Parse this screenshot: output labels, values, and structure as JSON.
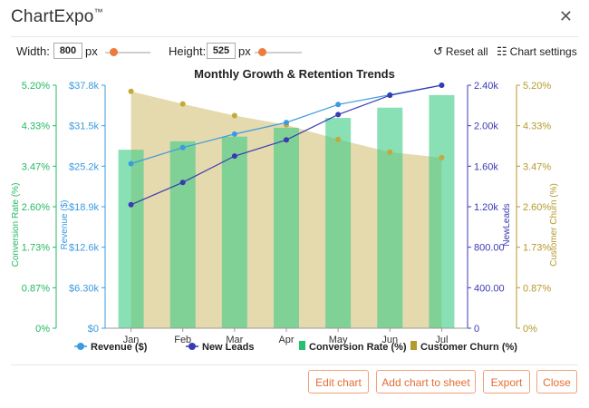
{
  "app": {
    "title": "ChartExpo",
    "tm": "™"
  },
  "toolbar": {
    "width_label": "Width:",
    "width_value": "800",
    "width_unit": "px",
    "height_label": "Height:",
    "height_value": "525",
    "height_unit": "px",
    "reset_label": "Reset all",
    "settings_label": "Chart settings"
  },
  "chart_data": {
    "type": "bar",
    "title": "Monthly Growth & Retention Trends",
    "categories": [
      "Jan",
      "Feb",
      "Mar",
      "Apr",
      "May",
      "Jun",
      "Jul"
    ],
    "series": [
      {
        "name": "Revenue ($)",
        "kind": "line",
        "axis": "revenue",
        "color": "#3a9be0",
        "values": [
          25600,
          28100,
          30200,
          32000,
          34800,
          36300,
          37800
        ]
      },
      {
        "name": "New Leads",
        "kind": "line",
        "axis": "leads",
        "color": "#3a3ab4",
        "values": [
          1220,
          1440,
          1700,
          1860,
          2110,
          2300,
          2400
        ]
      },
      {
        "name": "Conversion Rate (%)",
        "kind": "bar",
        "axis": "conversion",
        "color": "#3ccb84",
        "values": [
          3.82,
          4.0,
          4.1,
          4.29,
          4.5,
          4.72,
          4.99
        ]
      },
      {
        "name": "Customer Churn (%)",
        "kind": "area",
        "axis": "churn",
        "color": "#c2a93a",
        "values": [
          5.07,
          4.8,
          4.55,
          4.35,
          4.04,
          3.77,
          3.65
        ]
      }
    ],
    "axes": {
      "conversion": {
        "label": "Conversion Rate (%)",
        "ticks": [
          "0%",
          "0.87%",
          "1.73%",
          "2.60%",
          "3.47%",
          "4.33%",
          "5.20%"
        ],
        "ylim": [
          0,
          5.2
        ],
        "color": "#23b862"
      },
      "revenue": {
        "label": "Revenue ($)",
        "ticks": [
          "$0",
          "$6.30k",
          "$12.6k",
          "$18.9k",
          "$25.2k",
          "$31.5k",
          "$37.8k"
        ],
        "ylim": [
          0,
          37800
        ],
        "color": "#3a9be0"
      },
      "leads": {
        "label": "NewLeads",
        "ticks": [
          "0",
          "400.00",
          "800.00",
          "1.20k",
          "1.60k",
          "2.00k",
          "2.40k"
        ],
        "ylim": [
          0,
          2400
        ],
        "color": "#3a3ab4"
      },
      "churn": {
        "label": "Customer Churn (%)",
        "ticks": [
          "0%",
          "0.87%",
          "1.73%",
          "2.60%",
          "3.47%",
          "4.33%",
          "5.20%"
        ],
        "ylim": [
          0,
          5.2
        ],
        "color": "#b59a2c"
      }
    },
    "legend_position": "bottom"
  },
  "footer": {
    "edit": "Edit chart",
    "add": "Add chart to sheet",
    "export": "Export",
    "close": "Close"
  }
}
